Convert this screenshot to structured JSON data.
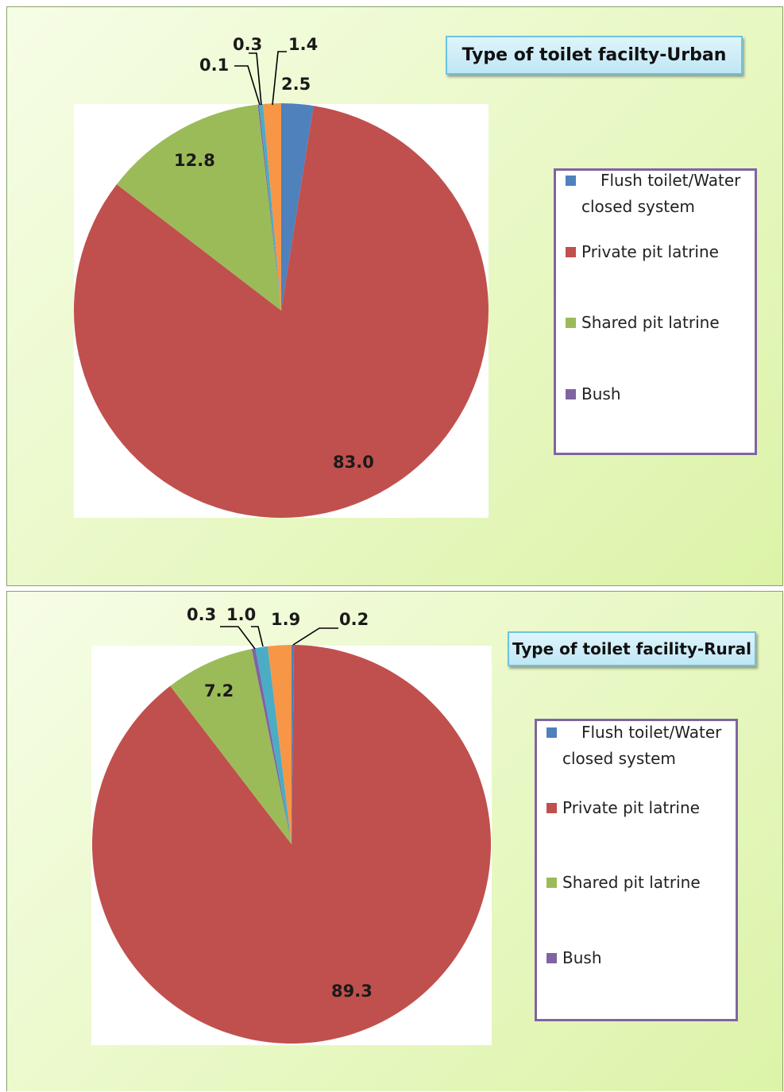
{
  "chart_data": [
    {
      "type": "pie",
      "title": "Type of toilet facilty-Urban",
      "categories": [
        "Flush toilet/Water closed system",
        "Private pit latrine",
        "Shared pit latrine",
        "Bush",
        "(unlisted)",
        "(unlisted)"
      ],
      "values": [
        2.5,
        83.0,
        12.8,
        0.1,
        0.3,
        1.4
      ],
      "value_labels": [
        "2.5",
        "83.0",
        "12.8",
        "0.1",
        "0.3",
        "1.4"
      ],
      "colors": [
        "#4f81bd",
        "#c0504d",
        "#9bbb59",
        "#8064a2",
        "#4bacc6",
        "#f79646"
      ],
      "legend": {
        "placement": "right",
        "entries": [
          {
            "label": "Flush toilet/Water closed system",
            "color": "#4f81bd"
          },
          {
            "label": "Private pit latrine",
            "color": "#c0504d"
          },
          {
            "label": "Shared pit latrine",
            "color": "#9bbb59"
          },
          {
            "label": "Bush",
            "color": "#8064a2"
          }
        ]
      }
    },
    {
      "type": "pie",
      "title": "Type of toilet facility-Rural",
      "categories": [
        "Flush toilet/Water closed system",
        "Private pit latrine",
        "Shared pit latrine",
        "Bush",
        "(unlisted)",
        "(unlisted)"
      ],
      "values": [
        0.2,
        89.3,
        7.2,
        0.3,
        1.0,
        1.9
      ],
      "value_labels": [
        "0.2",
        "89.3",
        "7.2",
        "0.3",
        "1.0",
        "1.9"
      ],
      "colors": [
        "#4f81bd",
        "#c0504d",
        "#9bbb59",
        "#8064a2",
        "#4bacc6",
        "#f79646"
      ],
      "legend": {
        "placement": "right",
        "entries": [
          {
            "label": "Flush toilet/Water closed system",
            "color": "#4f81bd"
          },
          {
            "label": "Private pit latrine",
            "color": "#c0504d"
          },
          {
            "label": "Shared pit latrine",
            "color": "#9bbb59"
          },
          {
            "label": "Bush",
            "color": "#8064a2"
          }
        ]
      }
    }
  ]
}
